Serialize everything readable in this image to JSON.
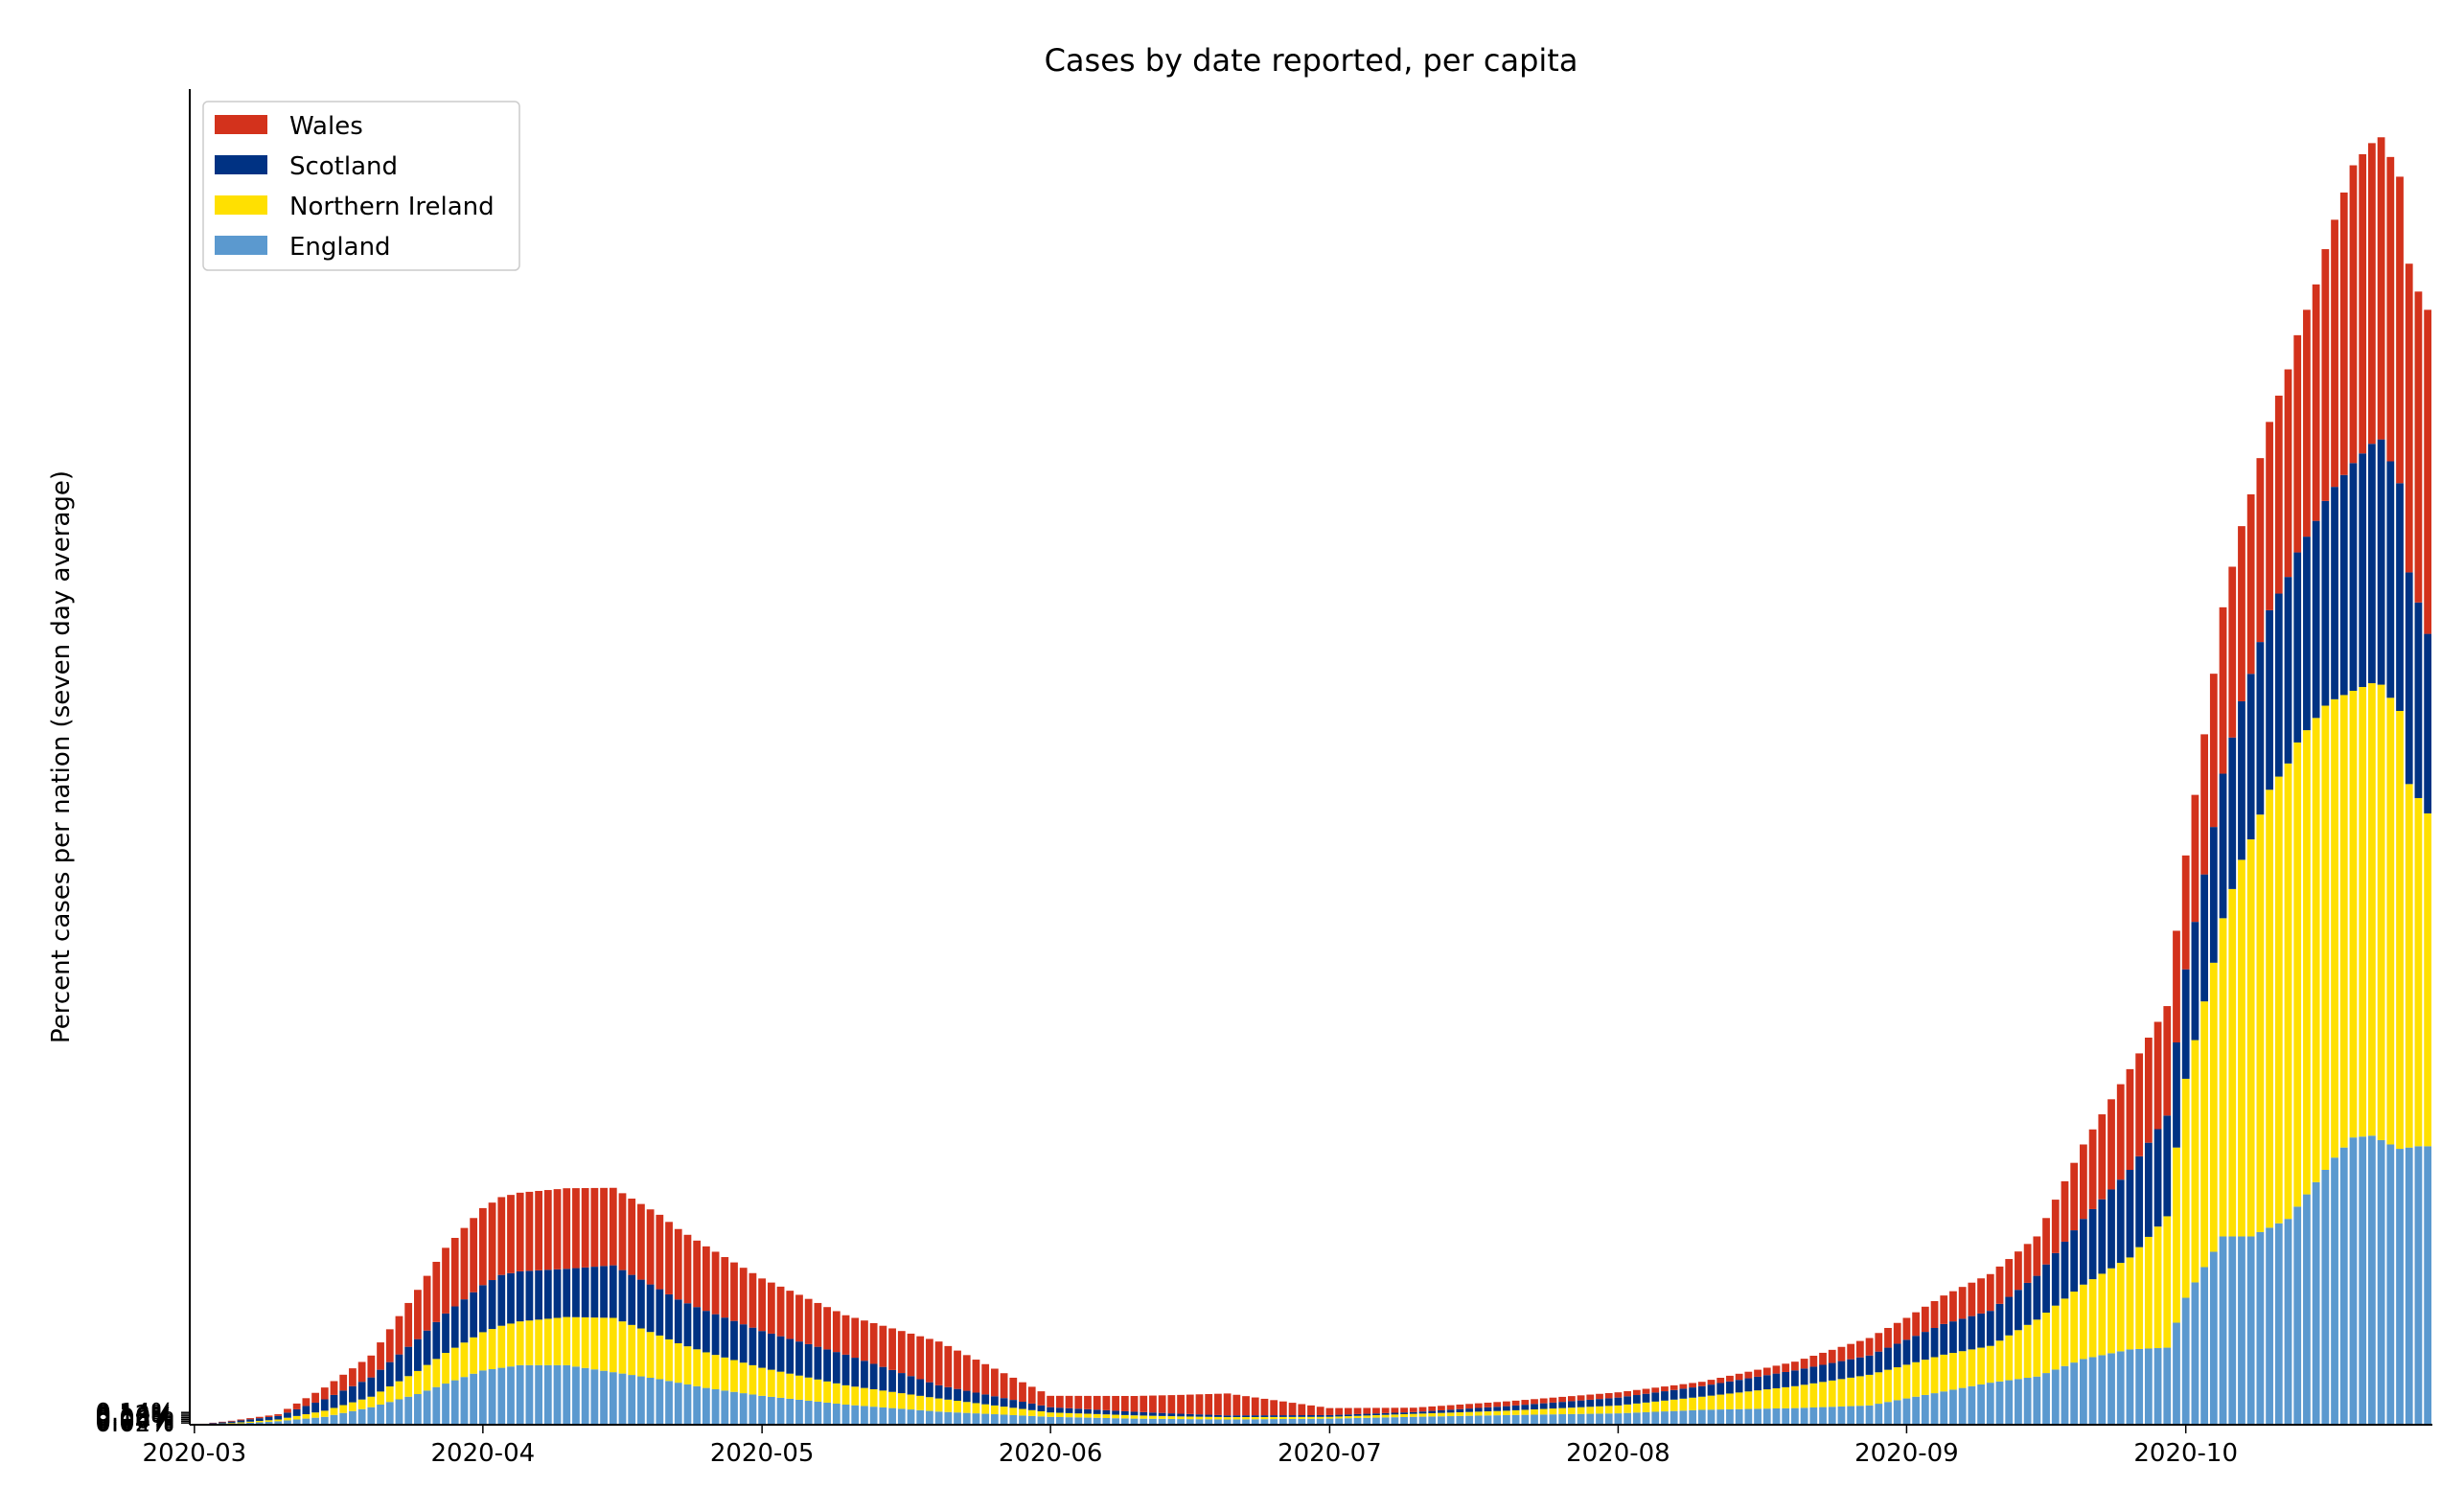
{
  "chart_data": {
    "type": "bar",
    "stacked": true,
    "title": "Cases by date reported, per capita",
    "xlabel": "",
    "ylabel": "Percent cases per nation (seven day average)",
    "x_start": "2020-03-01",
    "x_end": "2020-10-27",
    "xticks": [
      "2020-03",
      "2020-04",
      "2020-05",
      "2020-06",
      "2020-07",
      "2020-08",
      "2020-09",
      "2020-10"
    ],
    "yticks": [
      "0.02%",
      "0.04%",
      "0.06%",
      "0.08%",
      "0.10%",
      "0.12%",
      "0.14%"
    ],
    "ylim": [
      0,
      0.1525
    ],
    "grid": false,
    "legend_position": "top-left",
    "legend": [
      "Wales",
      "Scotland",
      "Northern Ireland",
      "England"
    ],
    "series": [
      {
        "name": "England",
        "color": "#5b99cf",
        "points": [
          [
            "2020-03-01",
            0
          ],
          [
            "2020-03-05",
            0.0001
          ],
          [
            "2020-03-10",
            0.0004
          ],
          [
            "2020-03-15",
            0.0009
          ],
          [
            "2020-03-20",
            0.002
          ],
          [
            "2020-03-25",
            0.0035
          ],
          [
            "2020-03-28",
            0.0047
          ],
          [
            "2020-04-01",
            0.0062
          ],
          [
            "2020-04-05",
            0.0068
          ],
          [
            "2020-04-10",
            0.0068
          ],
          [
            "2020-04-15",
            0.006
          ],
          [
            "2020-04-20",
            0.0052
          ],
          [
            "2020-04-25",
            0.0042
          ],
          [
            "2020-05-01",
            0.0033
          ],
          [
            "2020-05-10",
            0.0023
          ],
          [
            "2020-05-20",
            0.0015
          ],
          [
            "2020-06-01",
            0.0009
          ],
          [
            "2020-06-10",
            0.0007
          ],
          [
            "2020-06-20",
            0.0006
          ],
          [
            "2020-07-01",
            0.0007
          ],
          [
            "2020-07-10",
            0.0009
          ],
          [
            "2020-07-20",
            0.0011
          ],
          [
            "2020-08-01",
            0.0013
          ],
          [
            "2020-08-10",
            0.0017
          ],
          [
            "2020-08-20",
            0.0019
          ],
          [
            "2020-08-28",
            0.0022
          ],
          [
            "2020-09-05",
            0.0038
          ],
          [
            "2020-09-10",
            0.0048
          ],
          [
            "2020-09-15",
            0.0055
          ],
          [
            "2020-09-20",
            0.0075
          ],
          [
            "2020-09-25",
            0.0086
          ],
          [
            "2020-09-29",
            0.0088
          ],
          [
            "2020-10-01",
            0.0145
          ],
          [
            "2020-10-05",
            0.0215
          ],
          [
            "2020-10-08",
            0.0215
          ],
          [
            "2020-10-12",
            0.0235
          ],
          [
            "2020-10-17",
            0.0305
          ],
          [
            "2020-10-19",
            0.0328
          ],
          [
            "2020-10-21",
            0.033
          ],
          [
            "2020-10-24",
            0.0315
          ],
          [
            "2020-10-26",
            0.0318
          ],
          [
            "2020-10-27",
            0.0318
          ]
        ]
      },
      {
        "name": "Northern Ireland",
        "color": "#ffe001",
        "points": [
          [
            "2020-03-01",
            0
          ],
          [
            "2020-03-10",
            0.0002
          ],
          [
            "2020-03-20",
            0.0012
          ],
          [
            "2020-03-28",
            0.0035
          ],
          [
            "2020-04-03",
            0.0048
          ],
          [
            "2020-04-10",
            0.0055
          ],
          [
            "2020-04-15",
            0.0062
          ],
          [
            "2020-04-22",
            0.0045
          ],
          [
            "2020-05-01",
            0.0032
          ],
          [
            "2020-05-10",
            0.0022
          ],
          [
            "2020-05-20",
            0.0015
          ],
          [
            "2020-06-01",
            0.0005
          ],
          [
            "2020-06-15",
            0.0003
          ],
          [
            "2020-07-01",
            0.0002
          ],
          [
            "2020-07-20",
            0.0005
          ],
          [
            "2020-08-01",
            0.0009
          ],
          [
            "2020-08-10",
            0.0015
          ],
          [
            "2020-08-20",
            0.0025
          ],
          [
            "2020-08-28",
            0.0035
          ],
          [
            "2020-09-05",
            0.0042
          ],
          [
            "2020-09-10",
            0.0042
          ],
          [
            "2020-09-15",
            0.0065
          ],
          [
            "2020-09-20",
            0.0085
          ],
          [
            "2020-09-25",
            0.0105
          ],
          [
            "2020-09-29",
            0.015
          ],
          [
            "2020-10-01",
            0.025
          ],
          [
            "2020-10-04",
            0.033
          ],
          [
            "2020-10-07",
            0.043
          ],
          [
            "2020-10-10",
            0.05
          ],
          [
            "2020-10-13",
            0.053
          ],
          [
            "2020-10-16",
            0.053
          ],
          [
            "2020-10-19",
            0.051
          ],
          [
            "2020-10-22",
            0.052
          ],
          [
            "2020-10-24",
            0.05
          ],
          [
            "2020-10-25",
            0.0415
          ],
          [
            "2020-10-27",
            0.038
          ]
        ]
      },
      {
        "name": "Scotland",
        "color": "#003283",
        "points": [
          [
            "2020-03-01",
            0
          ],
          [
            "2020-03-10",
            0.0004
          ],
          [
            "2020-03-20",
            0.0022
          ],
          [
            "2020-03-28",
            0.0045
          ],
          [
            "2020-04-03",
            0.0058
          ],
          [
            "2020-04-10",
            0.0055
          ],
          [
            "2020-04-15",
            0.006
          ],
          [
            "2020-04-22",
            0.005
          ],
          [
            "2020-05-01",
            0.0042
          ],
          [
            "2020-05-10",
            0.0035
          ],
          [
            "2020-05-20",
            0.0015
          ],
          [
            "2020-06-01",
            0.0006
          ],
          [
            "2020-06-20",
            0.0002
          ],
          [
            "2020-07-10",
            0.0002
          ],
          [
            "2020-08-01",
            0.0009
          ],
          [
            "2020-08-10",
            0.0012
          ],
          [
            "2020-08-20",
            0.0018
          ],
          [
            "2020-08-28",
            0.0022
          ],
          [
            "2020-09-05",
            0.0035
          ],
          [
            "2020-09-10",
            0.004
          ],
          [
            "2020-09-15",
            0.005
          ],
          [
            "2020-09-20",
            0.0075
          ],
          [
            "2020-09-25",
            0.01
          ],
          [
            "2020-09-29",
            0.0115
          ],
          [
            "2020-10-01",
            0.0125
          ],
          [
            "2020-10-05",
            0.0165
          ],
          [
            "2020-10-10",
            0.0205
          ],
          [
            "2020-10-15",
            0.0225
          ],
          [
            "2020-10-19",
            0.026
          ],
          [
            "2020-10-22",
            0.028
          ],
          [
            "2020-10-24",
            0.026
          ],
          [
            "2020-10-27",
            0.0205
          ]
        ]
      },
      {
        "name": "Wales",
        "color": "#d3321c",
        "points": [
          [
            "2020-03-01",
            0
          ],
          [
            "2020-03-10",
            0.0002
          ],
          [
            "2020-03-20",
            0.0025
          ],
          [
            "2020-03-28",
            0.0075
          ],
          [
            "2020-04-01",
            0.0088
          ],
          [
            "2020-04-10",
            0.0092
          ],
          [
            "2020-04-20",
            0.0085
          ],
          [
            "2020-05-01",
            0.006
          ],
          [
            "2020-05-10",
            0.0045
          ],
          [
            "2020-05-20",
            0.005
          ],
          [
            "2020-06-01",
            0.0013
          ],
          [
            "2020-06-10",
            0.0018
          ],
          [
            "2020-06-20",
            0.0025
          ],
          [
            "2020-07-01",
            0.0008
          ],
          [
            "2020-07-10",
            0.0005
          ],
          [
            "2020-08-01",
            0.0006
          ],
          [
            "2020-08-10",
            0.0005
          ],
          [
            "2020-08-20",
            0.001
          ],
          [
            "2020-09-01",
            0.0025
          ],
          [
            "2020-09-10",
            0.0042
          ],
          [
            "2020-09-15",
            0.0045
          ],
          [
            "2020-09-20",
            0.0085
          ],
          [
            "2020-09-25",
            0.0115
          ],
          [
            "2020-09-29",
            0.0125
          ],
          [
            "2020-10-01",
            0.013
          ],
          [
            "2020-10-05",
            0.019
          ],
          [
            "2020-10-10",
            0.0215
          ],
          [
            "2020-10-15",
            0.027
          ],
          [
            "2020-10-19",
            0.034
          ],
          [
            "2020-10-22",
            0.0345
          ],
          [
            "2020-10-26",
            0.0355
          ],
          [
            "2020-10-27",
            0.037
          ]
        ]
      }
    ]
  }
}
